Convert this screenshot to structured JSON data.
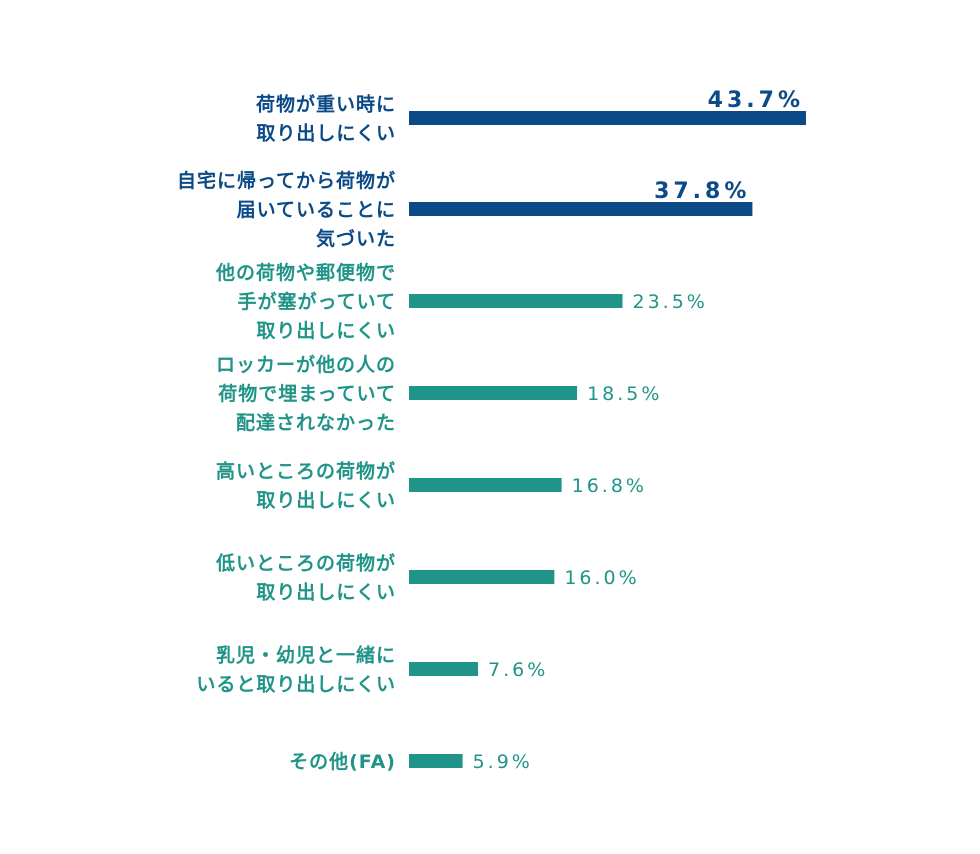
{
  "chart_data": {
    "type": "bar",
    "orientation": "horizontal",
    "categories": [
      [
        "荷物が重い時に",
        "取り出しにくい"
      ],
      [
        "自宅に帰ってから荷物が",
        "届いていることに",
        "気づいた"
      ],
      [
        "他の荷物や郵便物で",
        "手が塞がっていて",
        "取り出しにくい"
      ],
      [
        "ロッカーが他の人の",
        "荷物で埋まっていて",
        "配達されなかった"
      ],
      [
        "高いところの荷物が",
        "取り出しにくい"
      ],
      [
        "低いところの荷物が",
        "取り出しにくい"
      ],
      [
        "乳児・幼児と一緒に",
        "いると取り出しにくい"
      ],
      [
        "その他(FA)"
      ]
    ],
    "values": [
      43.7,
      37.8,
      23.5,
      18.5,
      16.8,
      16.0,
      7.6,
      5.9
    ],
    "value_labels": [
      "43.7%",
      "37.8%",
      "23.5%",
      "18.5%",
      "16.8%",
      "16.0%",
      "7.6%",
      "5.9%"
    ],
    "highlight_count": 2,
    "colors": {
      "highlight": "#0b4a87",
      "normal": "#209488"
    },
    "xlim": [
      0,
      43.7
    ],
    "grid": false,
    "legend": "none"
  }
}
